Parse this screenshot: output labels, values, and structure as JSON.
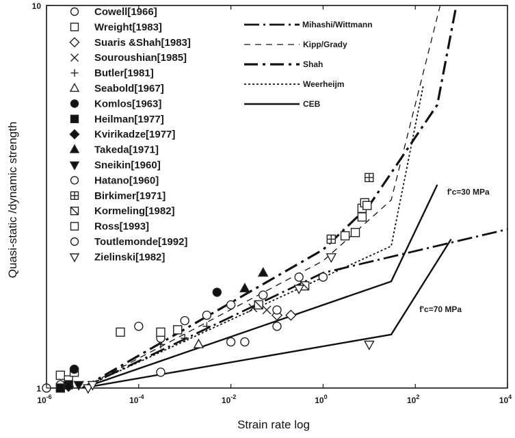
{
  "chart_data": {
    "type": "scatter",
    "title": "",
    "xlabel": "Strain rate log",
    "ylabel": "Quasi-static /dynamic strength",
    "x_scale": "log",
    "y_scale": "log",
    "xlim": [
      1e-06,
      10000
    ],
    "ylim": [
      1,
      10
    ],
    "grid": false,
    "legend_position": "top-left",
    "x_ticks": [
      {
        "value": 1e-06,
        "base": "10",
        "exp": "-6"
      },
      {
        "value": 0.0001,
        "base": "10",
        "exp": "-4"
      },
      {
        "value": 0.01,
        "base": "10",
        "exp": "-2"
      },
      {
        "value": 1,
        "base": "10",
        "exp": "0"
      },
      {
        "value": 100,
        "base": "10",
        "exp": "2"
      },
      {
        "value": 10000,
        "base": "10",
        "exp": "4"
      }
    ],
    "y_ticks": [
      {
        "value": 1,
        "label": "1"
      },
      {
        "value": 10,
        "label": "10"
      }
    ],
    "series": [
      {
        "name": "Cowell[1966]",
        "marker": "circle-open",
        "points": [
          [
            1e-06,
            1.0
          ],
          [
            2e-06,
            1.02
          ]
        ]
      },
      {
        "name": "Wreight[1983]",
        "marker": "square-open",
        "points": [
          [
            2e-06,
            1.08
          ],
          [
            3e-06,
            1.05
          ],
          [
            4e-06,
            1.1
          ]
        ]
      },
      {
        "name": "Suaris &Shah[1983]",
        "marker": "diamond-open",
        "points": [
          [
            0.1,
            1.55
          ],
          [
            0.2,
            1.55
          ]
        ]
      },
      {
        "name": "Souroushian[1985]",
        "marker": "x",
        "points": [
          [
            0.03,
            1.62
          ],
          [
            0.06,
            1.6
          ]
        ]
      },
      {
        "name": "Butler[1981]",
        "marker": "plus",
        "points": [
          [
            0.0003,
            1.3
          ],
          [
            0.001,
            1.35
          ],
          [
            0.003,
            1.45
          ]
        ]
      },
      {
        "name": "Seabold[1967]",
        "marker": "triangle-open",
        "points": [
          [
            0.002,
            1.3
          ]
        ]
      },
      {
        "name": "Komlos[1963]",
        "marker": "circle-filled",
        "points": [
          [
            4e-06,
            1.12
          ],
          [
            0.005,
            1.78
          ]
        ]
      },
      {
        "name": "Heilman[1977]",
        "marker": "square-filled",
        "points": [
          [
            2e-06,
            1.0
          ],
          [
            3e-06,
            1.02
          ]
        ]
      },
      {
        "name": "Kvirikadze[1977]",
        "marker": "diamond-filled",
        "points": [
          [
            3e-06,
            1.01
          ]
        ]
      },
      {
        "name": "Takeda[1971]",
        "marker": "triangle-filled",
        "points": [
          [
            0.02,
            1.82
          ],
          [
            0.05,
            2.0
          ]
        ]
      },
      {
        "name": "Sneikin[1960]",
        "marker": "triangle-down-filled",
        "points": [
          [
            5e-06,
            1.02
          ]
        ]
      },
      {
        "name": "Hatano[1960]",
        "marker": "circle-open",
        "points": [
          [
            0.0001,
            1.45
          ],
          [
            0.0003,
            1.35
          ],
          [
            0.001,
            1.5
          ],
          [
            0.003,
            1.55
          ],
          [
            0.01,
            1.65
          ],
          [
            0.05,
            1.75
          ],
          [
            0.1,
            1.6
          ],
          [
            0.3,
            1.95
          ],
          [
            1,
            1.95
          ]
        ]
      },
      {
        "name": "Birkimer[1971]",
        "marker": "square-plus",
        "points": [
          [
            1.5,
            2.45
          ],
          [
            10,
            3.55
          ]
        ]
      },
      {
        "name": "Kormeling[1982]",
        "marker": "square-slash",
        "points": [
          [
            0.04,
            1.65
          ],
          [
            0.4,
            1.85
          ]
        ]
      },
      {
        "name": "Ross[1993]",
        "marker": "square-open",
        "points": [
          [
            4e-05,
            1.4
          ],
          [
            0.0003,
            1.4
          ],
          [
            0.0007,
            1.42
          ],
          [
            3,
            2.5
          ],
          [
            5,
            2.55
          ],
          [
            7,
            2.8
          ],
          [
            7,
            2.95
          ],
          [
            8,
            3.05
          ],
          [
            9,
            3.0
          ]
        ]
      },
      {
        "name": "Toutlemonde[1992]",
        "marker": "circle-open",
        "points": [
          [
            0.0003,
            1.1
          ],
          [
            0.01,
            1.32
          ],
          [
            0.02,
            1.32
          ],
          [
            0.1,
            1.45
          ]
        ]
      },
      {
        "name": "Zielinski[1982]",
        "marker": "triangle-down-open",
        "points": [
          [
            8e-06,
            1.0
          ],
          [
            1e-05,
            1.02
          ],
          [
            0.3,
            1.82
          ],
          [
            1.5,
            2.2
          ],
          [
            10,
            1.3
          ]
        ]
      }
    ],
    "models": [
      {
        "name": "Mihashi/Wittmann",
        "style": "longdash",
        "points": [
          [
            6e-06,
            1.0
          ],
          [
            1,
            2.0
          ],
          [
            10000,
            2.6
          ]
        ]
      },
      {
        "name": "Kipp/Grady",
        "style": "thindash",
        "points": [
          [
            6e-06,
            1.0
          ],
          [
            1,
            2.15
          ],
          [
            30,
            3.1
          ],
          [
            10000,
            50
          ]
        ]
      },
      {
        "name": "Shah",
        "style": "dashdot",
        "points": [
          [
            6e-06,
            1.0
          ],
          [
            1,
            2.3
          ],
          [
            10,
            3.0
          ],
          [
            300,
            5.5
          ],
          [
            10000,
            50
          ]
        ]
      },
      {
        "name": "Weerheijm",
        "style": "dotted",
        "points": [
          [
            6e-06,
            1.0
          ],
          [
            30,
            2.35
          ],
          [
            150,
            6.2
          ]
        ]
      },
      {
        "name": "CEB",
        "style": "solid",
        "points": [
          [
            6e-06,
            1.0
          ],
          [
            30,
            1.9
          ],
          [
            300,
            3.4
          ]
        ]
      },
      {
        "name": "",
        "style": "solid",
        "points": [
          [
            6e-06,
            1.0
          ],
          [
            30,
            1.38
          ],
          [
            600,
            2.45
          ]
        ]
      }
    ],
    "annotations": [
      {
        "label": "f'c=30 MPa",
        "x": 400,
        "y": 3.2
      },
      {
        "label": "f'c=70 MPa",
        "x": 100,
        "y": 1.58
      }
    ]
  }
}
